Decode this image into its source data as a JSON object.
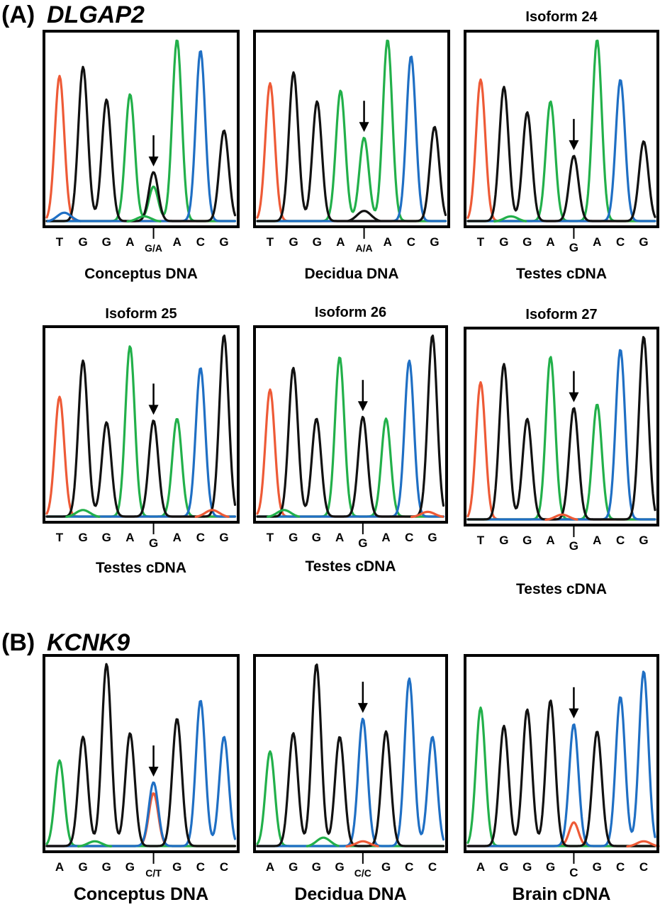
{
  "sections": [
    {
      "letter": "(A)",
      "gene": "DLGAP2"
    },
    {
      "letter": "(B)",
      "gene": "KCNK9"
    }
  ],
  "colors": {
    "A": "#22b04a",
    "C": "#1f6fc4",
    "G": "#111111",
    "T": "#ee5a36"
  },
  "chart_data": [
    {
      "type": "line",
      "title": "",
      "caption": "Conceptus DNA",
      "bases": [
        "T",
        "G",
        "G",
        "A",
        "G/A",
        "A",
        "C",
        "G"
      ],
      "snp_index": 4,
      "baseline_noise": [
        {
          "color": "blue",
          "x": 0.2,
          "y": 0.05
        },
        {
          "color": "green",
          "x": 3.6,
          "y": 0.03
        }
      ],
      "peaks": [
        {
          "base": "T",
          "x": 0.0,
          "height": 0.8
        },
        {
          "base": "G",
          "x": 1.0,
          "height": 0.85
        },
        {
          "base": "G",
          "x": 2.0,
          "height": 0.67
        },
        {
          "base": "A",
          "x": 3.0,
          "height": 0.7
        },
        {
          "base": "G",
          "x": 4.0,
          "height": 0.27
        },
        {
          "base": "A",
          "x": 4.0,
          "height": 0.19
        },
        {
          "base": "A",
          "x": 5.0,
          "height": 1.0
        },
        {
          "base": "C",
          "x": 6.0,
          "height": 0.94
        },
        {
          "base": "G",
          "x": 7.0,
          "height": 0.5
        }
      ]
    },
    {
      "type": "line",
      "title": "",
      "caption": "Decidua DNA",
      "bases": [
        "T",
        "G",
        "G",
        "A",
        "A/A",
        "A",
        "C",
        "G"
      ],
      "snp_index": 4,
      "baseline_noise": [
        {
          "color": "black",
          "x": 4.0,
          "y": 0.06
        }
      ],
      "peaks": [
        {
          "base": "T",
          "x": 0.0,
          "height": 0.76
        },
        {
          "base": "G",
          "x": 1.0,
          "height": 0.82
        },
        {
          "base": "G",
          "x": 2.0,
          "height": 0.66
        },
        {
          "base": "A",
          "x": 3.0,
          "height": 0.72
        },
        {
          "base": "A",
          "x": 4.0,
          "height": 0.46
        },
        {
          "base": "A",
          "x": 5.0,
          "height": 1.0
        },
        {
          "base": "C",
          "x": 6.0,
          "height": 0.91
        },
        {
          "base": "G",
          "x": 7.0,
          "height": 0.52
        }
      ]
    },
    {
      "type": "line",
      "title": "Isoform 24",
      "caption": "Testes cDNA",
      "bases": [
        "T",
        "G",
        "G",
        "A",
        "G",
        "A",
        "C",
        "G"
      ],
      "snp_index": 4,
      "baseline_noise": [
        {
          "color": "green",
          "x": 1.3,
          "y": 0.03
        }
      ],
      "peaks": [
        {
          "base": "T",
          "x": 0.0,
          "height": 0.78
        },
        {
          "base": "G",
          "x": 1.0,
          "height": 0.74
        },
        {
          "base": "G",
          "x": 2.0,
          "height": 0.6
        },
        {
          "base": "A",
          "x": 3.0,
          "height": 0.66
        },
        {
          "base": "G",
          "x": 4.0,
          "height": 0.36
        },
        {
          "base": "A",
          "x": 5.0,
          "height": 1.0
        },
        {
          "base": "C",
          "x": 6.0,
          "height": 0.78
        },
        {
          "base": "G",
          "x": 7.0,
          "height": 0.44
        }
      ]
    },
    {
      "type": "line",
      "title": "Isoform 25",
      "caption": "Testes cDNA",
      "bases": [
        "T",
        "G",
        "G",
        "A",
        "G",
        "A",
        "C",
        "G"
      ],
      "snp_index": 4,
      "baseline_noise": [
        {
          "color": "green",
          "x": 1.0,
          "y": 0.04
        },
        {
          "color": "red",
          "x": 6.5,
          "y": 0.04
        }
      ],
      "peaks": [
        {
          "base": "T",
          "x": 0.0,
          "height": 0.66
        },
        {
          "base": "G",
          "x": 1.0,
          "height": 0.86
        },
        {
          "base": "G",
          "x": 2.0,
          "height": 0.52
        },
        {
          "base": "A",
          "x": 3.0,
          "height": 0.94
        },
        {
          "base": "G",
          "x": 4.0,
          "height": 0.53
        },
        {
          "base": "A",
          "x": 5.0,
          "height": 0.54
        },
        {
          "base": "C",
          "x": 6.0,
          "height": 0.82
        },
        {
          "base": "G",
          "x": 7.0,
          "height": 1.0
        }
      ]
    },
    {
      "type": "line",
      "title": "Isoform 26",
      "caption": "Testes cDNA",
      "bases": [
        "T",
        "G",
        "G",
        "A",
        "G",
        "A",
        "C",
        "G"
      ],
      "snp_index": 4,
      "baseline_noise": [
        {
          "color": "green",
          "x": 0.6,
          "y": 0.04
        },
        {
          "color": "red",
          "x": 6.8,
          "y": 0.03
        }
      ],
      "peaks": [
        {
          "base": "T",
          "x": 0.0,
          "height": 0.7
        },
        {
          "base": "G",
          "x": 1.0,
          "height": 0.82
        },
        {
          "base": "G",
          "x": 2.0,
          "height": 0.54
        },
        {
          "base": "A",
          "x": 3.0,
          "height": 0.88
        },
        {
          "base": "G",
          "x": 4.0,
          "height": 0.55
        },
        {
          "base": "A",
          "x": 5.0,
          "height": 0.54
        },
        {
          "base": "C",
          "x": 6.0,
          "height": 0.86
        },
        {
          "base": "G",
          "x": 7.0,
          "height": 1.0
        }
      ]
    },
    {
      "type": "line",
      "title": "Isoform 27",
      "caption": "Testes cDNA",
      "bases": [
        "T",
        "G",
        "G",
        "A",
        "G",
        "A",
        "C",
        "G"
      ],
      "snp_index": 4,
      "baseline_noise": [
        {
          "color": "red",
          "x": 3.5,
          "y": 0.03
        }
      ],
      "peaks": [
        {
          "base": "T",
          "x": 0.0,
          "height": 0.75
        },
        {
          "base": "G",
          "x": 1.0,
          "height": 0.85
        },
        {
          "base": "G",
          "x": 2.0,
          "height": 0.55
        },
        {
          "base": "A",
          "x": 3.0,
          "height": 0.89
        },
        {
          "base": "G",
          "x": 4.0,
          "height": 0.61
        },
        {
          "base": "A",
          "x": 5.0,
          "height": 0.63
        },
        {
          "base": "C",
          "x": 6.0,
          "height": 0.93
        },
        {
          "base": "G",
          "x": 7.0,
          "height": 1.0
        }
      ]
    },
    {
      "type": "line",
      "title": "",
      "caption": "Conceptus DNA",
      "bases": [
        "A",
        "G",
        "G",
        "G",
        "C/T",
        "G",
        "C",
        "C"
      ],
      "snp_index": 4,
      "baseline_noise": [
        {
          "color": "green",
          "x": 1.5,
          "y": 0.03
        }
      ],
      "peaks": [
        {
          "base": "A",
          "x": 0.0,
          "height": 0.47
        },
        {
          "base": "G",
          "x": 1.0,
          "height": 0.6
        },
        {
          "base": "G",
          "x": 2.0,
          "height": 1.0
        },
        {
          "base": "G",
          "x": 3.0,
          "height": 0.62
        },
        {
          "base": "C",
          "x": 4.0,
          "height": 0.35
        },
        {
          "base": "T",
          "x": 4.0,
          "height": 0.29
        },
        {
          "base": "G",
          "x": 5.0,
          "height": 0.7
        },
        {
          "base": "C",
          "x": 6.0,
          "height": 0.8
        },
        {
          "base": "C",
          "x": 7.0,
          "height": 0.6
        }
      ]
    },
    {
      "type": "line",
      "title": "",
      "caption": "Decidua DNA",
      "bases": [
        "A",
        "G",
        "G",
        "G",
        "C/C",
        "G",
        "C",
        "C"
      ],
      "snp_index": 4,
      "baseline_noise": [
        {
          "color": "green",
          "x": 2.3,
          "y": 0.05
        },
        {
          "color": "red",
          "x": 4.0,
          "y": 0.03
        }
      ],
      "peaks": [
        {
          "base": "A",
          "x": 0.0,
          "height": 0.52
        },
        {
          "base": "G",
          "x": 1.0,
          "height": 0.62
        },
        {
          "base": "G",
          "x": 2.0,
          "height": 1.0
        },
        {
          "base": "G",
          "x": 3.0,
          "height": 0.6
        },
        {
          "base": "C",
          "x": 4.0,
          "height": 0.7
        },
        {
          "base": "G",
          "x": 5.0,
          "height": 0.63
        },
        {
          "base": "C",
          "x": 6.0,
          "height": 0.92
        },
        {
          "base": "C",
          "x": 7.0,
          "height": 0.6
        }
      ]
    },
    {
      "type": "line",
      "title": "",
      "caption": "Brain cDNA",
      "bases": [
        "A",
        "G",
        "G",
        "G",
        "C",
        "G",
        "C",
        "C"
      ],
      "snp_index": 4,
      "baseline_noise": [
        {
          "color": "red",
          "x": 7.0,
          "y": 0.03
        }
      ],
      "peaks": [
        {
          "base": "A",
          "x": 0.0,
          "height": 0.76
        },
        {
          "base": "G",
          "x": 1.0,
          "height": 0.66
        },
        {
          "base": "G",
          "x": 2.0,
          "height": 0.75
        },
        {
          "base": "G",
          "x": 3.0,
          "height": 0.8
        },
        {
          "base": "C",
          "x": 4.0,
          "height": 0.67
        },
        {
          "base": "T",
          "x": 4.0,
          "height": 0.13
        },
        {
          "base": "G",
          "x": 5.0,
          "height": 0.63
        },
        {
          "base": "C",
          "x": 6.0,
          "height": 0.82
        },
        {
          "base": "C",
          "x": 7.0,
          "height": 0.96
        }
      ]
    }
  ]
}
